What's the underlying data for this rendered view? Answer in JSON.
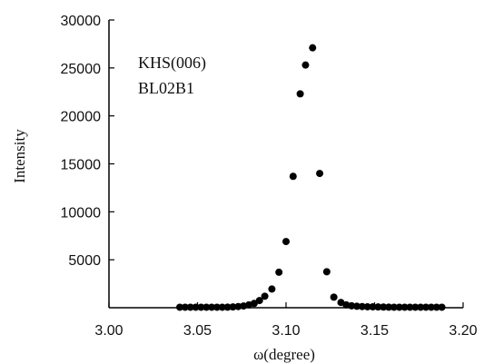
{
  "chart_data": {
    "type": "scatter",
    "title": "",
    "xlabel": "ω(degree)",
    "ylabel": "Intensity",
    "xlim": [
      3.0,
      3.2
    ],
    "ylim": [
      0,
      30000
    ],
    "x_ticks": [
      "3.00",
      "3.05",
      "3.10",
      "3.15",
      "3.20"
    ],
    "y_ticks": [
      "5000",
      "10000",
      "15000",
      "20000",
      "25000",
      "30000"
    ],
    "annotations": [
      "KHS(006)",
      "BL02B1"
    ],
    "grid": false,
    "legend": "none",
    "marker_color": "#000000",
    "points": [
      {
        "x": 3.04,
        "y": 50
      },
      {
        "x": 3.043,
        "y": 50
      },
      {
        "x": 3.046,
        "y": 50
      },
      {
        "x": 3.049,
        "y": 50
      },
      {
        "x": 3.052,
        "y": 50
      },
      {
        "x": 3.055,
        "y": 50
      },
      {
        "x": 3.058,
        "y": 50
      },
      {
        "x": 3.061,
        "y": 50
      },
      {
        "x": 3.064,
        "y": 50
      },
      {
        "x": 3.067,
        "y": 60
      },
      {
        "x": 3.07,
        "y": 80
      },
      {
        "x": 3.073,
        "y": 120
      },
      {
        "x": 3.076,
        "y": 180
      },
      {
        "x": 3.079,
        "y": 300
      },
      {
        "x": 3.082,
        "y": 450
      },
      {
        "x": 3.085,
        "y": 750
      },
      {
        "x": 3.088,
        "y": 1200
      },
      {
        "x": 3.092,
        "y": 1950
      },
      {
        "x": 3.096,
        "y": 3700
      },
      {
        "x": 3.1,
        "y": 6900
      },
      {
        "x": 3.104,
        "y": 13700
      },
      {
        "x": 3.108,
        "y": 22300
      },
      {
        "x": 3.111,
        "y": 25300
      },
      {
        "x": 3.115,
        "y": 27100
      },
      {
        "x": 3.119,
        "y": 14000
      },
      {
        "x": 3.123,
        "y": 3750
      },
      {
        "x": 3.127,
        "y": 1100
      },
      {
        "x": 3.131,
        "y": 550
      },
      {
        "x": 3.134,
        "y": 300
      },
      {
        "x": 3.137,
        "y": 200
      },
      {
        "x": 3.14,
        "y": 150
      },
      {
        "x": 3.143,
        "y": 120
      },
      {
        "x": 3.146,
        "y": 100
      },
      {
        "x": 3.149,
        "y": 90
      },
      {
        "x": 3.152,
        "y": 80
      },
      {
        "x": 3.155,
        "y": 70
      },
      {
        "x": 3.158,
        "y": 60
      },
      {
        "x": 3.161,
        "y": 50
      },
      {
        "x": 3.164,
        "y": 50
      },
      {
        "x": 3.167,
        "y": 50
      },
      {
        "x": 3.17,
        "y": 50
      },
      {
        "x": 3.173,
        "y": 50
      },
      {
        "x": 3.176,
        "y": 50
      },
      {
        "x": 3.179,
        "y": 50
      },
      {
        "x": 3.182,
        "y": 50
      },
      {
        "x": 3.185,
        "y": 50
      },
      {
        "x": 3.188,
        "y": 50
      }
    ]
  }
}
